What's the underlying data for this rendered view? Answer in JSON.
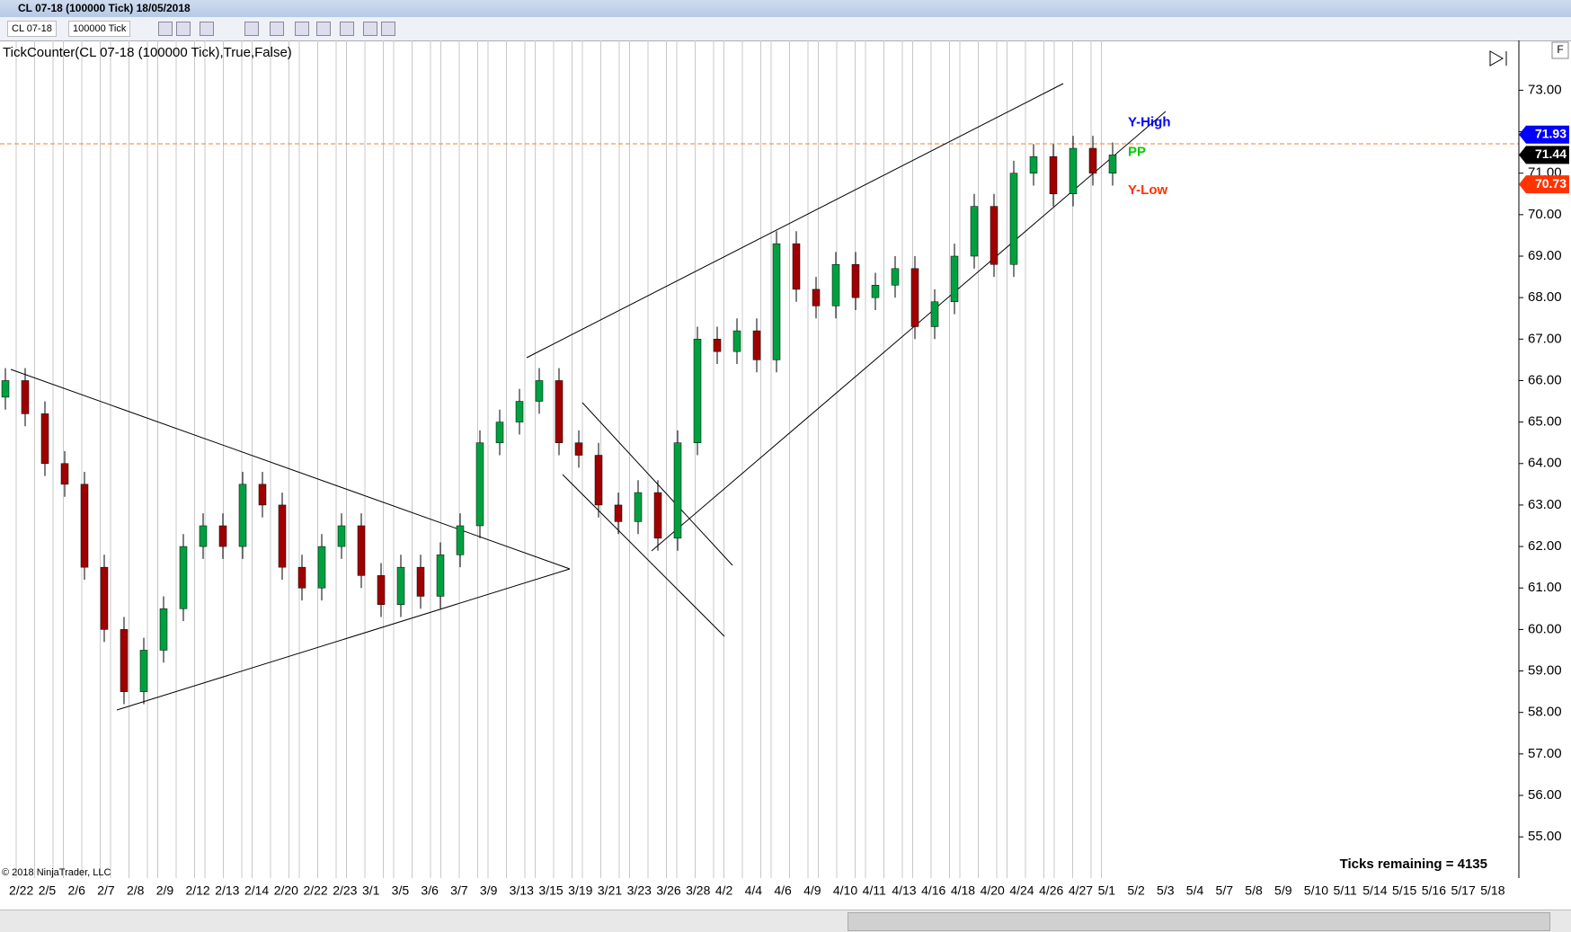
{
  "window": {
    "title": "CL 07-18 (100000 Tick)  18/05/2018"
  },
  "toolbar": {
    "instrument": "CL 07-18",
    "period": "100000 Tick"
  },
  "indicator_label": "TickCounter(CL 07-18 (100000 Tick),True,False)",
  "copyright": "© 2018 NinjaTrader, LLC",
  "ticks_remaining": "Ticks remaining = 4135",
  "panel_button": "F",
  "chart_data": {
    "type": "candlestick",
    "open": [
      65.6,
      66.0,
      65.2,
      64.0,
      63.5,
      61.5,
      60.0,
      58.5,
      59.5,
      60.5,
      62.0,
      62.5,
      62.0,
      63.5,
      63.0,
      61.5,
      61.0,
      62.0,
      62.5,
      61.3,
      60.6,
      61.5,
      60.8,
      61.8,
      62.5,
      64.5,
      65.0,
      65.5,
      66.0,
      64.5,
      64.2,
      63.0,
      62.6,
      63.3,
      62.2,
      64.5,
      67.0,
      66.7,
      67.2,
      66.5,
      69.3,
      68.2,
      67.8,
      68.8,
      68.0,
      68.3,
      68.7,
      67.3,
      67.9,
      69.0,
      70.2,
      68.8,
      71.0,
      71.4,
      70.5,
      71.6,
      71.0
    ],
    "high": [
      66.3,
      66.3,
      65.5,
      64.3,
      63.8,
      61.8,
      60.3,
      59.8,
      60.8,
      62.3,
      62.8,
      62.8,
      63.8,
      63.8,
      63.3,
      61.8,
      62.3,
      62.8,
      62.8,
      61.6,
      61.8,
      61.8,
      62.1,
      62.8,
      64.8,
      65.3,
      65.8,
      66.3,
      66.3,
      64.8,
      64.5,
      63.3,
      63.6,
      63.6,
      64.8,
      67.3,
      67.3,
      67.5,
      67.5,
      69.6,
      69.6,
      68.5,
      69.1,
      69.1,
      68.6,
      69.0,
      69.0,
      68.2,
      69.3,
      70.5,
      70.5,
      71.3,
      71.7,
      71.7,
      71.9,
      71.9,
      71.74
    ],
    "low": [
      65.3,
      64.9,
      63.7,
      63.2,
      61.2,
      59.7,
      58.2,
      58.2,
      59.2,
      60.2,
      61.7,
      61.7,
      61.7,
      62.7,
      61.2,
      60.7,
      60.7,
      61.7,
      61.0,
      60.3,
      60.3,
      60.5,
      60.5,
      61.5,
      62.2,
      64.2,
      64.7,
      65.2,
      64.2,
      63.9,
      62.7,
      62.3,
      62.3,
      61.9,
      61.9,
      64.2,
      66.4,
      66.4,
      66.2,
      66.2,
      67.9,
      67.5,
      67.5,
      67.7,
      67.7,
      68.0,
      67.0,
      67.0,
      67.6,
      68.7,
      68.5,
      68.5,
      70.7,
      70.2,
      70.2,
      70.7,
      70.7
    ],
    "close": [
      66.0,
      65.2,
      64.0,
      63.5,
      61.5,
      60.0,
      58.5,
      59.5,
      60.5,
      62.0,
      62.5,
      62.0,
      63.5,
      63.0,
      61.5,
      61.0,
      62.0,
      62.5,
      61.3,
      60.6,
      61.5,
      60.8,
      61.8,
      62.5,
      64.5,
      65.0,
      65.5,
      66.0,
      64.5,
      64.2,
      63.0,
      62.6,
      63.3,
      62.2,
      64.5,
      67.0,
      66.7,
      67.2,
      66.5,
      69.3,
      68.2,
      67.8,
      68.8,
      68.0,
      68.3,
      68.7,
      67.3,
      67.9,
      69.0,
      70.2,
      68.8,
      71.0,
      71.4,
      70.5,
      71.6,
      71.0,
      71.44
    ],
    "up_color": "#00a040",
    "down_color": "#a00000",
    "ylim": [
      54.05,
      74.2
    ],
    "yticks": [
      {
        "value": 55,
        "label": "55.00"
      },
      {
        "value": 56,
        "label": "56.00"
      },
      {
        "value": 57,
        "label": "57.00"
      },
      {
        "value": 58,
        "label": "58.00"
      },
      {
        "value": 59,
        "label": "59.00"
      },
      {
        "value": 60,
        "label": "60.00"
      },
      {
        "value": 61,
        "label": "61.00"
      },
      {
        "value": 62,
        "label": "62.00"
      },
      {
        "value": 63,
        "label": "63.00"
      },
      {
        "value": 64,
        "label": "64.00"
      },
      {
        "value": 65,
        "label": "65.00"
      },
      {
        "value": 66,
        "label": "66.00"
      },
      {
        "value": 67,
        "label": "67.00"
      },
      {
        "value": 68,
        "label": "68.00"
      },
      {
        "value": 69,
        "label": "69.00"
      },
      {
        "value": 70,
        "label": "70.00"
      },
      {
        "value": 71,
        "label": "71.00"
      },
      {
        "value": 72,
        "label": "72.00"
      },
      {
        "value": 73,
        "label": "73.00"
      }
    ],
    "x_labels": [
      "2/22",
      "2/5",
      "2/6",
      "2/7",
      "2/8",
      "2/9",
      "2/12",
      "2/13",
      "2/14",
      "2/20",
      "2/22",
      "2/23",
      "3/1",
      "3/5",
      "3/6",
      "3/7",
      "3/9",
      "3/13",
      "3/15",
      "3/19",
      "3/21",
      "3/23",
      "3/26",
      "3/28",
      "4/2",
      "4/4",
      "4/6",
      "4/9",
      "4/10",
      "4/11",
      "4/13",
      "4/16",
      "4/18",
      "4/20",
      "4/24",
      "4/26",
      "4/27",
      "5/1",
      "5/2",
      "5/3",
      "5/4",
      "5/7",
      "5/8",
      "5/9",
      "5/10",
      "5/11",
      "5/14",
      "5/15",
      "5/16",
      "5/17",
      "5/18"
    ],
    "price_markers": [
      {
        "name": "Y-High",
        "value": 71.93,
        "value_label": "71.93",
        "color": "#0000ff"
      },
      {
        "name": "PP",
        "value": 71.44,
        "value_label": "71.44",
        "color": "#00cc00"
      },
      {
        "name": "Y-Low",
        "value": 70.73,
        "value_label": "70.73",
        "color": "#ff3300"
      }
    ]
  }
}
